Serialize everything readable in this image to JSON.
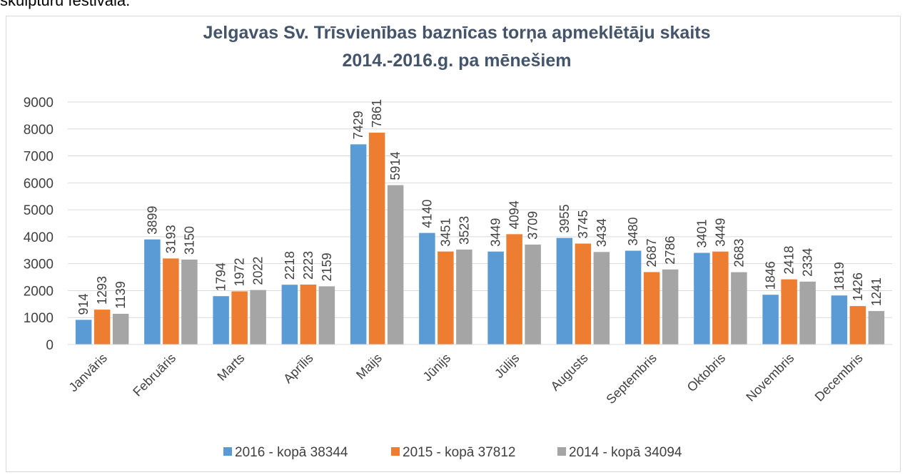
{
  "page_text": "skulptūru festivālā.",
  "chart_data": {
    "type": "bar",
    "title": [
      "Jelgavas Sv. Trīsvienības baznīcas torņa apmeklētāju skaits",
      "2014.-2016.g. pa mēnešiem"
    ],
    "categories": [
      "Janvāris",
      "Februāris",
      "Marts",
      "Aprīlis",
      "Maijs",
      "Jūnijs",
      "Jūlijs",
      "Augusts",
      "Septembris",
      "Oktobris",
      "Novembris",
      "Decembris"
    ],
    "series": [
      {
        "name": "2016 - kopā 38344",
        "color": "#5b9bd5",
        "values": [
          914,
          3899,
          1794,
          2218,
          7429,
          4140,
          3449,
          3955,
          3480,
          3401,
          1846,
          1819
        ]
      },
      {
        "name": "2015 - kopā 37812",
        "color": "#ed7d31",
        "values": [
          1293,
          3193,
          1972,
          2223,
          7861,
          3451,
          4094,
          3745,
          2687,
          3449,
          2418,
          1426
        ]
      },
      {
        "name": "2014 - kopā 34094",
        "color": "#a5a5a5",
        "values": [
          1139,
          3150,
          2022,
          2159,
          5914,
          3523,
          3709,
          3434,
          2786,
          2683,
          2334,
          1241
        ]
      }
    ],
    "ylim": [
      0,
      9000
    ],
    "yticks": [
      0,
      1000,
      2000,
      3000,
      4000,
      5000,
      6000,
      7000,
      8000,
      9000
    ],
    "grid": true,
    "legend": "bottom"
  }
}
